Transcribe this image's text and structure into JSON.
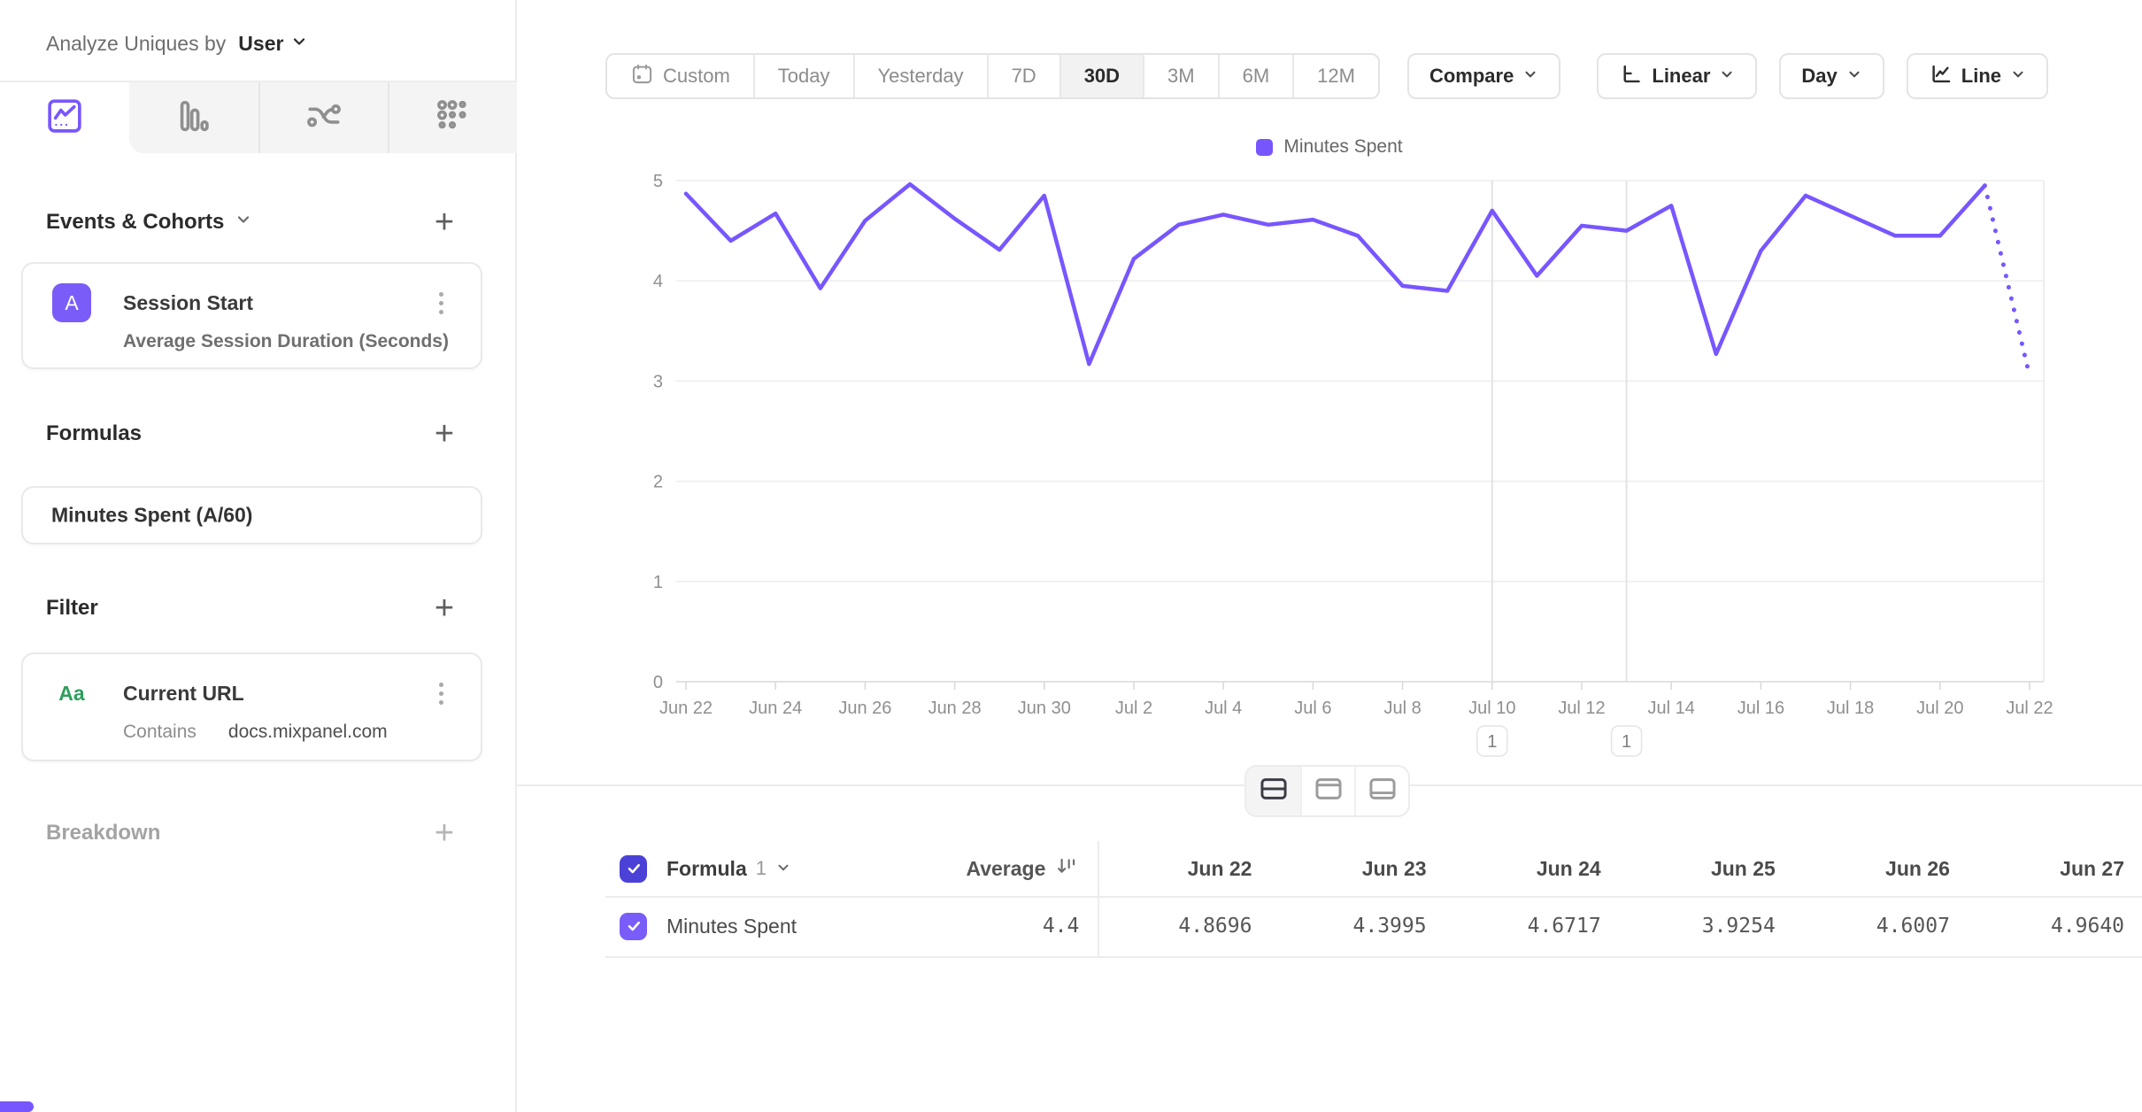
{
  "sidebar": {
    "analyze_label": "Analyze Uniques by",
    "analyze_value": "User",
    "tabs": [
      "insights-line-icon",
      "bar-chart-icon",
      "flows-icon",
      "retention-grid-icon"
    ],
    "events_title": "Events & Cohorts",
    "add_label": "+",
    "event_card": {
      "badge": "A",
      "title": "Session Start",
      "measurement": "Average Session Duration (Seconds)"
    },
    "formulas_title": "Formulas",
    "formula_card": {
      "title": "Minutes Spent (A/60)"
    },
    "filter_title": "Filter",
    "filter_card": {
      "type_icon": "Aa",
      "property": "Current URL",
      "operator": "Contains",
      "value": "docs.mixpanel.com"
    },
    "breakdown_title": "Breakdown"
  },
  "controls": {
    "date_range": [
      "Custom",
      "Today",
      "Yesterday",
      "7D",
      "30D",
      "3M",
      "6M",
      "12M"
    ],
    "active_range": "30D",
    "compare_label": "Compare",
    "scale_label": "Linear",
    "interval_label": "Day",
    "chart_type_label": "Line"
  },
  "legend": {
    "label": "Minutes Spent",
    "color": "#7856FF"
  },
  "chart_data": {
    "type": "line",
    "title": "",
    "xlabel": "",
    "ylabel": "",
    "series_name": "Minutes Spent",
    "color": "#7856FF",
    "ylim": [
      0,
      5
    ],
    "yticks": [
      0,
      1,
      2,
      3,
      4,
      5
    ],
    "xtick_step": 2,
    "grid": true,
    "legend_position": "top-center",
    "incomplete_last": true,
    "x": [
      "Jun 22",
      "Jun 23",
      "Jun 24",
      "Jun 25",
      "Jun 26",
      "Jun 27",
      "Jun 28",
      "Jun 29",
      "Jun 30",
      "Jul 1",
      "Jul 2",
      "Jul 3",
      "Jul 4",
      "Jul 5",
      "Jul 6",
      "Jul 7",
      "Jul 8",
      "Jul 9",
      "Jul 10",
      "Jul 11",
      "Jul 12",
      "Jul 13",
      "Jul 14",
      "Jul 15",
      "Jul 16",
      "Jul 17",
      "Jul 18",
      "Jul 19",
      "Jul 20",
      "Jul 21",
      "Jul 22"
    ],
    "values": [
      4.8696,
      4.3995,
      4.6717,
      3.9254,
      4.6007,
      4.964,
      4.62,
      4.31,
      4.85,
      3.17,
      4.22,
      4.56,
      4.66,
      4.56,
      4.61,
      4.45,
      3.95,
      3.9,
      4.7,
      4.05,
      4.55,
      4.5,
      4.75,
      3.27,
      4.3,
      4.85,
      4.65,
      4.45,
      4.45,
      4.95,
      3.05
    ],
    "annotations": [
      {
        "x": "Jul 10",
        "label": "1"
      },
      {
        "x": "Jul 13",
        "label": "1"
      }
    ]
  },
  "view_toggle": [
    "split-view",
    "chart-only-view",
    "table-only-view"
  ],
  "table": {
    "group_name": "Formula",
    "group_index": "1",
    "sort_column": "Average",
    "columns": [
      "Jun 22",
      "Jun 23",
      "Jun 24",
      "Jun 25",
      "Jun 26",
      "Jun 27"
    ],
    "row": {
      "label": "Minutes Spent",
      "average": "4.4",
      "values": [
        "4.8696",
        "4.3995",
        "4.6717",
        "3.9254",
        "4.6007",
        "4.9640"
      ]
    }
  }
}
